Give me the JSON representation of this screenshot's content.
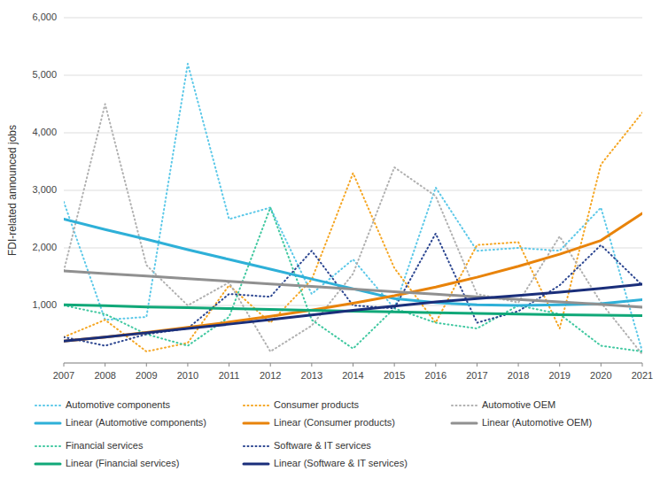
{
  "chart_data": {
    "type": "line",
    "y_label": "FDI-related announced jobs",
    "x": [
      2007,
      2008,
      2009,
      2010,
      2011,
      2012,
      2013,
      2014,
      2015,
      2016,
      2017,
      2018,
      2019,
      2020,
      2021
    ],
    "xlim": [
      2007,
      2021
    ],
    "xticks": [
      2007,
      2008,
      2009,
      2010,
      2011,
      2012,
      2013,
      2014,
      2015,
      2016,
      2017,
      2018,
      2019,
      2020,
      2021
    ],
    "ylim": [
      0,
      6000
    ],
    "yticks": [
      {
        "value": 0,
        "label": null
      },
      {
        "value": 1000,
        "label": "1,000"
      },
      {
        "value": 2000,
        "label": "2,000"
      },
      {
        "value": 3000,
        "label": "3,000"
      },
      {
        "value": 4000,
        "label": "4,000"
      },
      {
        "value": 5000,
        "label": "5,000"
      },
      {
        "value": 6000,
        "label": "6,000"
      }
    ],
    "grid": true,
    "legend": "bottom",
    "series": [
      {
        "name": "Automotive components",
        "color": "#5BC8E8",
        "line_style": "dotted",
        "values": [
          2800,
          750,
          800,
          5200,
          2500,
          2700,
          1200,
          1800,
          950,
          3050,
          1950,
          2000,
          1950,
          2700,
          200
        ]
      },
      {
        "name": "Consumer products",
        "color": "#F5A623",
        "line_style": "dotted",
        "values": [
          450,
          750,
          200,
          350,
          1350,
          700,
          1450,
          3300,
          1650,
          700,
          2050,
          2100,
          600,
          3450,
          4350
        ]
      },
      {
        "name": "Automotive OEM",
        "color": "#B0B0B0",
        "line_style": "dotted",
        "values": [
          1600,
          4500,
          1700,
          1000,
          1400,
          200,
          650,
          1550,
          3400,
          2900,
          1200,
          1050,
          2200,
          1050,
          150
        ]
      },
      {
        "name": "Financial services",
        "color": "#40C8A0",
        "line_style": "dotted",
        "values": [
          1000,
          850,
          500,
          300,
          800,
          2700,
          750,
          250,
          950,
          700,
          600,
          1000,
          850,
          300,
          200
        ]
      },
      {
        "name": "Software & IT services",
        "color": "#2B4590",
        "line_style": "dotted",
        "values": [
          450,
          300,
          500,
          600,
          1200,
          1150,
          1950,
          1000,
          950,
          2250,
          700,
          900,
          1350,
          2050,
          1350
        ]
      },
      {
        "name": "Linear (Automotive components)",
        "color": "#2EB0D8",
        "line_style": "solid",
        "values": [
          2500,
          2320,
          2150,
          1970,
          1800,
          1630,
          1460,
          1290,
          1120,
          1050,
          1010,
          1000,
          1010,
          1030,
          1100
        ]
      },
      {
        "name": "Linear (Consumer products)",
        "color": "#E8830A",
        "line_style": "solid",
        "values": [
          380,
          450,
          530,
          620,
          710,
          810,
          920,
          1040,
          1170,
          1320,
          1490,
          1680,
          1890,
          2130,
          2600
        ]
      },
      {
        "name": "Linear (Automotive OEM)",
        "color": "#909090",
        "line_style": "solid",
        "values": [
          1600,
          1555,
          1510,
          1465,
          1420,
          1375,
          1330,
          1285,
          1240,
          1195,
          1150,
          1105,
          1060,
          1020,
          970
        ]
      },
      {
        "name": "Linear (Financial services)",
        "color": "#10A878",
        "line_style": "solid",
        "values": [
          1010,
          995,
          975,
          960,
          945,
          930,
          915,
          900,
          888,
          875,
          862,
          850,
          840,
          832,
          825
        ]
      },
      {
        "name": "Linear (Software & IT services)",
        "color": "#1A2E7A",
        "line_style": "solid",
        "values": [
          380,
          450,
          525,
          600,
          675,
          755,
          835,
          915,
          990,
          1060,
          1120,
          1175,
          1230,
          1295,
          1370
        ]
      }
    ]
  }
}
